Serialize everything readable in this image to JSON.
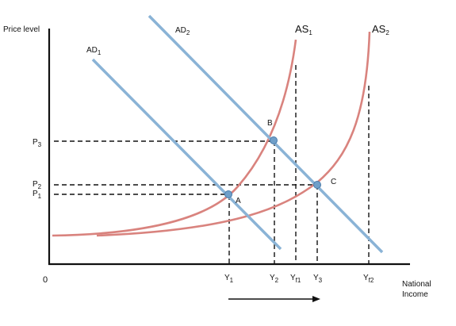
{
  "axes": {
    "y_label": "Price level",
    "x_label_line1": "National",
    "x_label_line2": "Income",
    "origin": "0"
  },
  "curves": {
    "ad1": {
      "main": "AD",
      "sub": "1"
    },
    "ad2": {
      "main": "AD",
      "sub": "2"
    },
    "as1": {
      "main": "AS",
      "sub": "1"
    },
    "as2": {
      "main": "AS",
      "sub": "2"
    }
  },
  "points": {
    "a": "A",
    "b": "B",
    "c": "C"
  },
  "price_ticks": {
    "p3": {
      "main": "P",
      "sub": "3"
    },
    "p2": {
      "main": "P",
      "sub": "2"
    },
    "p1": {
      "main": "P",
      "sub": "1"
    }
  },
  "income_ticks": {
    "y1": {
      "main": "Y",
      "sub": "1"
    },
    "y2": {
      "main": "Y",
      "sub": "2"
    },
    "yf1": {
      "main": "Y",
      "sub": "f1"
    },
    "y3": {
      "main": "Y",
      "sub": "3"
    },
    "yf2": {
      "main": "Y",
      "sub": "f2"
    }
  },
  "colors": {
    "ad_line": "#8ab3d6",
    "as_curve": "#d9837e",
    "equilibrium_point": "#6f9fc9"
  }
}
